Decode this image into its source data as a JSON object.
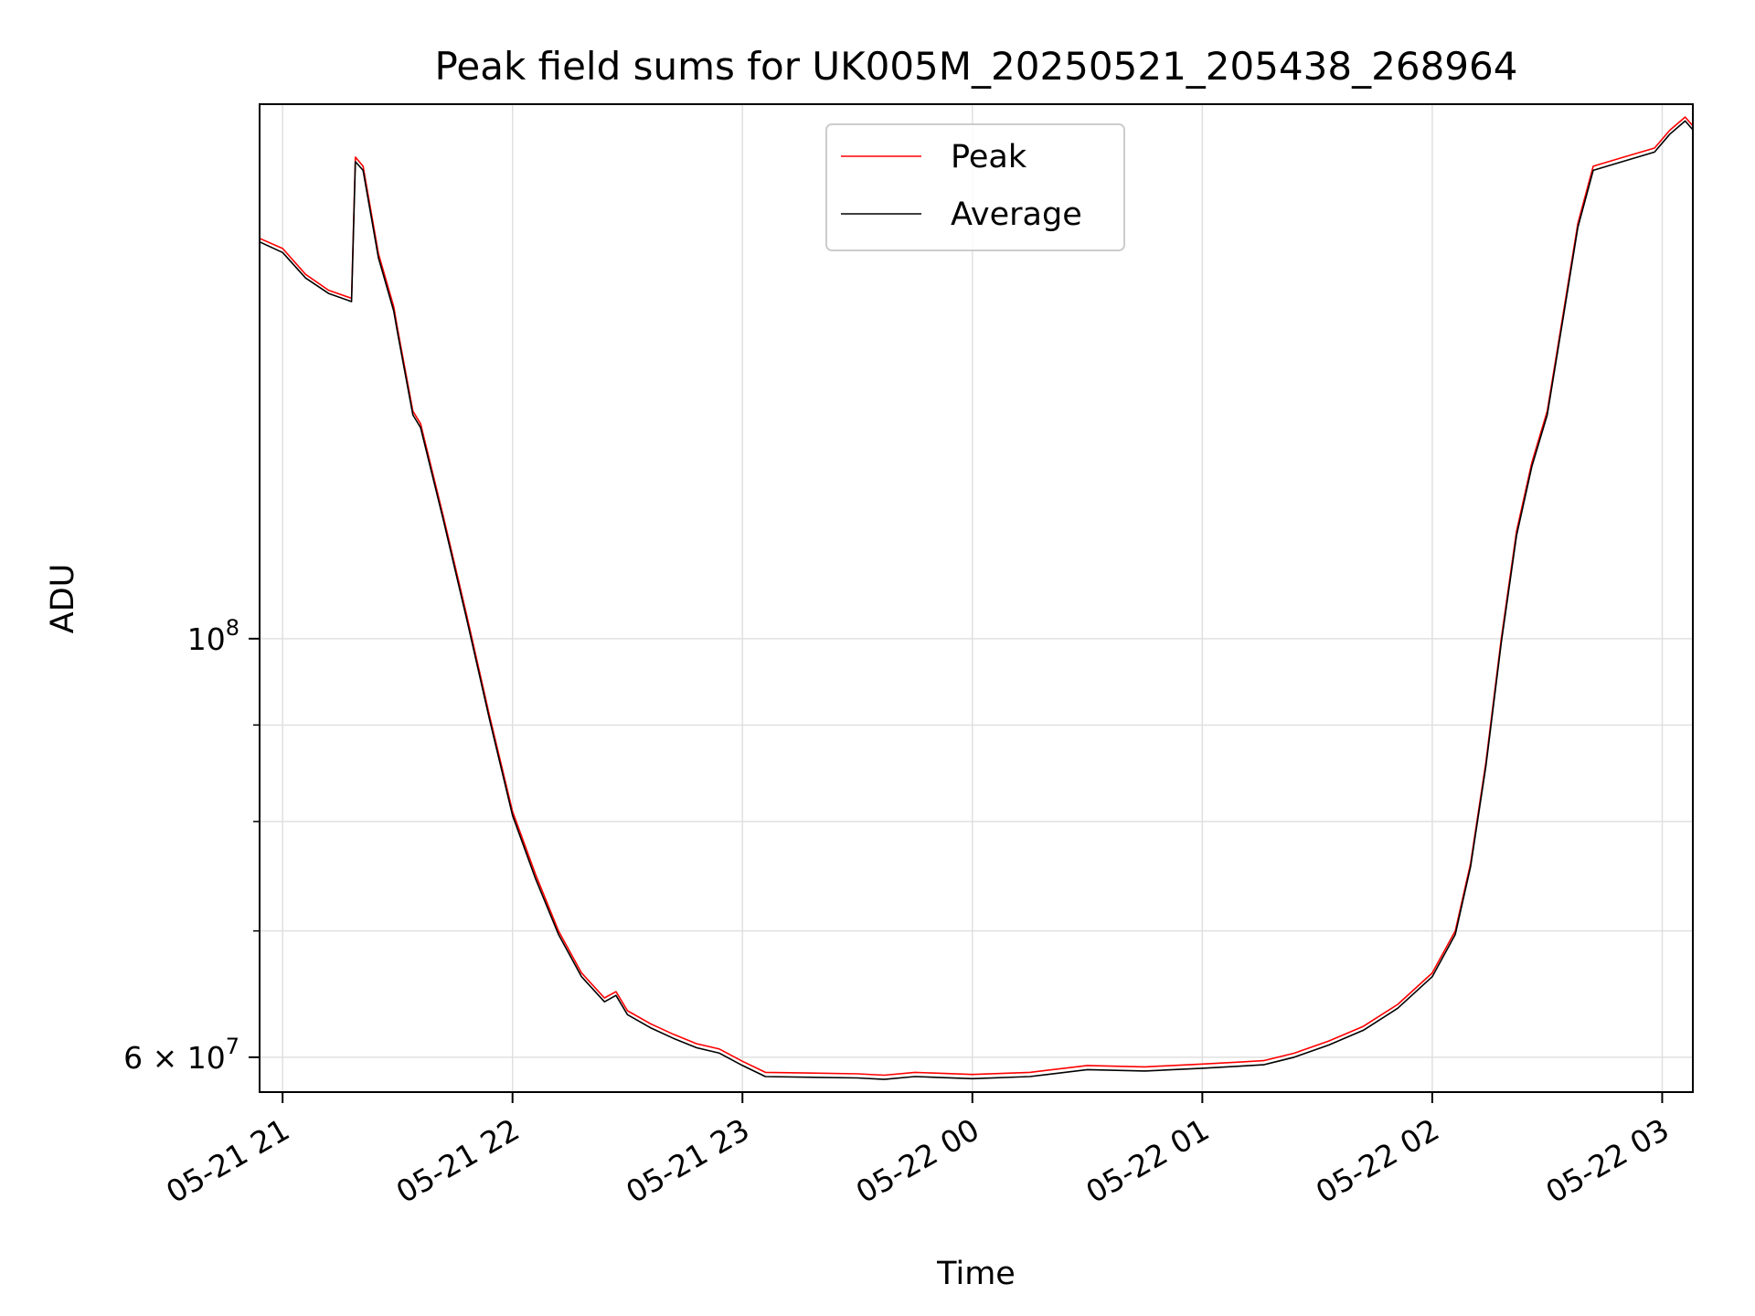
{
  "chart_data": {
    "type": "line",
    "title": "Peak field sums for UK005M_20250521_205438_268964",
    "xlabel": "Time",
    "ylabel": "ADU",
    "yscale": "log",
    "grid": true,
    "legend_position": "top-center",
    "xlim": [
      "2025-05-21 20:54",
      "2025-05-22 03:08"
    ],
    "ylim": [
      57500000,
      192000000
    ],
    "x_ticks": [
      {
        "t": "2025-05-21 21:00",
        "label": "05-21 21"
      },
      {
        "t": "2025-05-21 22:00",
        "label": "05-21 22"
      },
      {
        "t": "2025-05-21 23:00",
        "label": "05-21 23"
      },
      {
        "t": "2025-05-22 00:00",
        "label": "05-22 00"
      },
      {
        "t": "2025-05-22 01:00",
        "label": "05-22 01"
      },
      {
        "t": "2025-05-22 02:00",
        "label": "05-22 02"
      },
      {
        "t": "2025-05-22 03:00",
        "label": "05-22 03"
      }
    ],
    "y_major_ticks": [
      {
        "value": 60000000,
        "label": "6 × 10",
        "exp": "7"
      },
      {
        "value": 100000000,
        "label": "10",
        "exp": "8"
      }
    ],
    "y_minor_ticks": [
      70000000,
      80000000,
      90000000
    ],
    "colors": {
      "peak": "#ff0000",
      "average": "#000000",
      "grid": "#e0e0e0"
    },
    "series": [
      {
        "name": "Peak",
        "color": "#ff0000",
        "points": [
          [
            "2025-05-21 20:54",
            163000000
          ],
          [
            "2025-05-21 21:00",
            161000000
          ],
          [
            "2025-05-21 21:06",
            156000000
          ],
          [
            "2025-05-21 21:12",
            153000000
          ],
          [
            "2025-05-21 21:18",
            151500000
          ],
          [
            "2025-05-21 21:19",
            180000000
          ],
          [
            "2025-05-21 21:21",
            178000000
          ],
          [
            "2025-05-21 21:25",
            160000000
          ],
          [
            "2025-05-21 21:29",
            150000000
          ],
          [
            "2025-05-21 21:30",
            146000000
          ],
          [
            "2025-05-21 21:34",
            132000000
          ],
          [
            "2025-05-21 21:36",
            130000000
          ],
          [
            "2025-05-21 21:42",
            116000000
          ],
          [
            "2025-05-21 21:48",
            103000000
          ],
          [
            "2025-05-21 21:54",
            91000000
          ],
          [
            "2025-05-21 22:00",
            81000000
          ],
          [
            "2025-05-21 22:06",
            75000000
          ],
          [
            "2025-05-21 22:12",
            70000000
          ],
          [
            "2025-05-21 22:18",
            66500000
          ],
          [
            "2025-05-21 22:24",
            64500000
          ],
          [
            "2025-05-21 22:27",
            65000000
          ],
          [
            "2025-05-21 22:30",
            63500000
          ],
          [
            "2025-05-21 22:36",
            62500000
          ],
          [
            "2025-05-21 22:42",
            61700000
          ],
          [
            "2025-05-21 22:48",
            61000000
          ],
          [
            "2025-05-21 22:54",
            60600000
          ],
          [
            "2025-05-21 23:00",
            59700000
          ],
          [
            "2025-05-21 23:06",
            58900000
          ],
          [
            "2025-05-21 23:30",
            58800000
          ],
          [
            "2025-05-21 23:37",
            58700000
          ],
          [
            "2025-05-21 23:45",
            58900000
          ],
          [
            "2025-05-22 00:00",
            58750000
          ],
          [
            "2025-05-22 00:15",
            58900000
          ],
          [
            "2025-05-22 00:30",
            59400000
          ],
          [
            "2025-05-22 00:45",
            59300000
          ],
          [
            "2025-05-22 01:00",
            59500000
          ],
          [
            "2025-05-22 01:10",
            59650000
          ],
          [
            "2025-05-22 01:16",
            59750000
          ],
          [
            "2025-05-22 01:24",
            60300000
          ],
          [
            "2025-05-22 01:33",
            61200000
          ],
          [
            "2025-05-22 01:42",
            62300000
          ],
          [
            "2025-05-22 01:51",
            64000000
          ],
          [
            "2025-05-22 02:00",
            66500000
          ],
          [
            "2025-05-22 02:06",
            70000000
          ],
          [
            "2025-05-22 02:10",
            76000000
          ],
          [
            "2025-05-22 02:14",
            86000000
          ],
          [
            "2025-05-22 02:18",
            100000000
          ],
          [
            "2025-05-22 02:22",
            114000000
          ],
          [
            "2025-05-22 02:26",
            124000000
          ],
          [
            "2025-05-22 02:30",
            132000000
          ],
          [
            "2025-05-22 02:34",
            148000000
          ],
          [
            "2025-05-22 02:38",
            166000000
          ],
          [
            "2025-05-22 02:42",
            178000000
          ],
          [
            "2025-05-22 02:50",
            180000000
          ],
          [
            "2025-05-22 02:58",
            182000000
          ],
          [
            "2025-05-22 03:02",
            186000000
          ],
          [
            "2025-05-22 03:06",
            189000000
          ],
          [
            "2025-05-22 03:08",
            187000000
          ]
        ]
      },
      {
        "name": "Average",
        "color": "#000000",
        "points": [
          [
            "2025-05-21 20:54",
            162300000
          ],
          [
            "2025-05-21 21:00",
            160200000
          ],
          [
            "2025-05-21 21:06",
            155300000
          ],
          [
            "2025-05-21 21:12",
            152400000
          ],
          [
            "2025-05-21 21:18",
            150900000
          ],
          [
            "2025-05-21 21:19",
            179000000
          ],
          [
            "2025-05-21 21:21",
            177100000
          ],
          [
            "2025-05-21 21:25",
            159200000
          ],
          [
            "2025-05-21 21:29",
            149200000
          ],
          [
            "2025-05-21 21:30",
            145300000
          ],
          [
            "2025-05-21 21:34",
            131400000
          ],
          [
            "2025-05-21 21:36",
            129400000
          ],
          [
            "2025-05-21 21:42",
            115500000
          ],
          [
            "2025-05-21 21:48",
            102500000
          ],
          [
            "2025-05-21 21:54",
            90600000
          ],
          [
            "2025-05-21 22:00",
            80600000
          ],
          [
            "2025-05-21 22:06",
            74600000
          ],
          [
            "2025-05-21 22:12",
            69700000
          ],
          [
            "2025-05-21 22:18",
            66200000
          ],
          [
            "2025-05-21 22:24",
            64200000
          ],
          [
            "2025-05-21 22:27",
            64700000
          ],
          [
            "2025-05-21 22:30",
            63200000
          ],
          [
            "2025-05-21 22:36",
            62200000
          ],
          [
            "2025-05-21 22:42",
            61400000
          ],
          [
            "2025-05-21 22:48",
            60700000
          ],
          [
            "2025-05-21 22:54",
            60300000
          ],
          [
            "2025-05-21 23:00",
            59400000
          ],
          [
            "2025-05-21 23:06",
            58600000
          ],
          [
            "2025-05-21 23:30",
            58500000
          ],
          [
            "2025-05-21 23:37",
            58400000
          ],
          [
            "2025-05-21 23:45",
            58600000
          ],
          [
            "2025-05-22 00:00",
            58450000
          ],
          [
            "2025-05-22 00:15",
            58600000
          ],
          [
            "2025-05-22 00:30",
            59100000
          ],
          [
            "2025-05-22 00:45",
            59000000
          ],
          [
            "2025-05-22 01:00",
            59200000
          ],
          [
            "2025-05-22 01:10",
            59350000
          ],
          [
            "2025-05-22 01:16",
            59450000
          ],
          [
            "2025-05-22 01:24",
            60000000
          ],
          [
            "2025-05-22 01:33",
            60900000
          ],
          [
            "2025-05-22 01:42",
            62000000
          ],
          [
            "2025-05-22 01:51",
            63700000
          ],
          [
            "2025-05-22 02:00",
            66200000
          ],
          [
            "2025-05-22 02:06",
            69700000
          ],
          [
            "2025-05-22 02:10",
            75700000
          ],
          [
            "2025-05-22 02:14",
            85600000
          ],
          [
            "2025-05-22 02:18",
            99500000
          ],
          [
            "2025-05-22 02:22",
            113400000
          ],
          [
            "2025-05-22 02:26",
            123400000
          ],
          [
            "2025-05-22 02:30",
            131400000
          ],
          [
            "2025-05-22 02:34",
            147300000
          ],
          [
            "2025-05-22 02:38",
            165200000
          ],
          [
            "2025-05-22 02:42",
            177100000
          ],
          [
            "2025-05-22 02:50",
            179100000
          ],
          [
            "2025-05-22 02:58",
            181100000
          ],
          [
            "2025-05-22 03:02",
            185100000
          ],
          [
            "2025-05-22 03:06",
            188100000
          ],
          [
            "2025-05-22 03:08",
            186100000
          ]
        ]
      }
    ]
  }
}
